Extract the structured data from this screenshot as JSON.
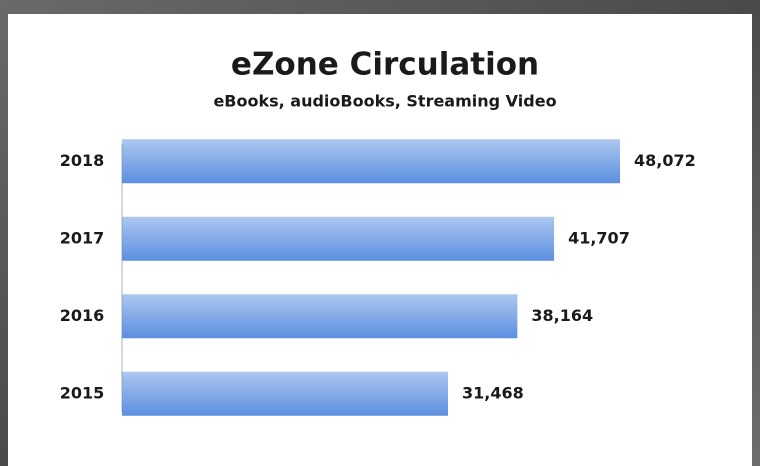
{
  "chart_data": {
    "type": "bar",
    "orientation": "horizontal",
    "title": "eZone Circulation",
    "subtitle": "eBooks, audioBooks, Streaming Video",
    "categories": [
      "2018",
      "2017",
      "2016",
      "2015"
    ],
    "values": [
      48072,
      41707,
      38164,
      31468
    ],
    "value_labels": [
      "48,072",
      "41,707",
      "38,164",
      "31,468"
    ],
    "color": "#5b8fe0",
    "xlim": [
      0,
      50000
    ]
  }
}
